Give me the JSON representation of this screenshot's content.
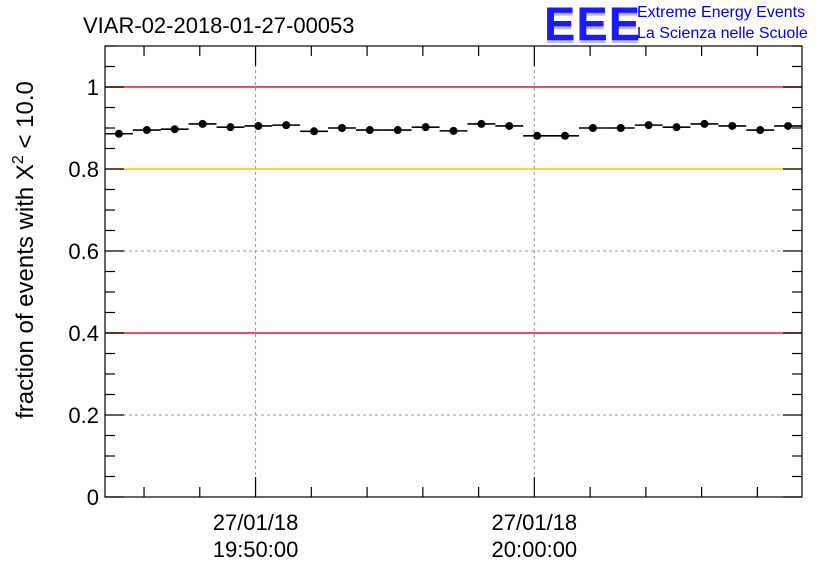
{
  "chart_data": {
    "type": "scatter",
    "title": "VIAR-02-2018-01-27-00053",
    "ylabel_main": "fraction of events with X",
    "ylabel_sup": "2",
    "ylabel_tail": " < 10.0",
    "ylim": [
      0,
      1.1
    ],
    "yticks": [
      0,
      0.2,
      0.4,
      0.6,
      0.8,
      1
    ],
    "ytick_labels": [
      "0",
      "0.2",
      "0.4",
      "0.6",
      "0.8",
      "1"
    ],
    "xlim_minutes": [
      -5.4,
      19.6
    ],
    "xticks": [
      {
        "minute": 0,
        "date": "27/01/18",
        "time": "19:50:00"
      },
      {
        "minute": 10,
        "date": "27/01/18",
        "time": "20:00:00"
      }
    ],
    "grid": true,
    "bin_width_minutes": 1,
    "series": [
      {
        "name": "fraction",
        "x_minutes": [
          -4.9,
          -3.9,
          -2.9,
          -1.9,
          -0.9,
          0.1,
          1.1,
          2.1,
          3.1,
          4.1,
          5.1,
          6.1,
          7.1,
          8.1,
          9.1,
          10.1,
          11.1,
          12.1,
          13.1,
          14.1,
          15.1,
          16.1,
          17.1,
          18.1,
          19.1
        ],
        "values": [
          0.886,
          0.895,
          0.897,
          0.91,
          0.902,
          0.905,
          0.907,
          0.892,
          0.9,
          0.895,
          0.895,
          0.902,
          0.893,
          0.91,
          0.905,
          0.881,
          0.881,
          0.9,
          0.9,
          0.907,
          0.902,
          0.91,
          0.905,
          0.895,
          0.905
        ]
      }
    ],
    "reference_lines": [
      {
        "y": 1.0,
        "color": "#e8191b"
      },
      {
        "y": 0.8,
        "color": "#f5c400"
      },
      {
        "y": 0.4,
        "color": "#e8191b"
      }
    ]
  },
  "logo": {
    "mark": "EEE",
    "line1": "Extreme Energy Events",
    "line2": "La Scienza nelle Scuole",
    "color": "#0000ee"
  }
}
